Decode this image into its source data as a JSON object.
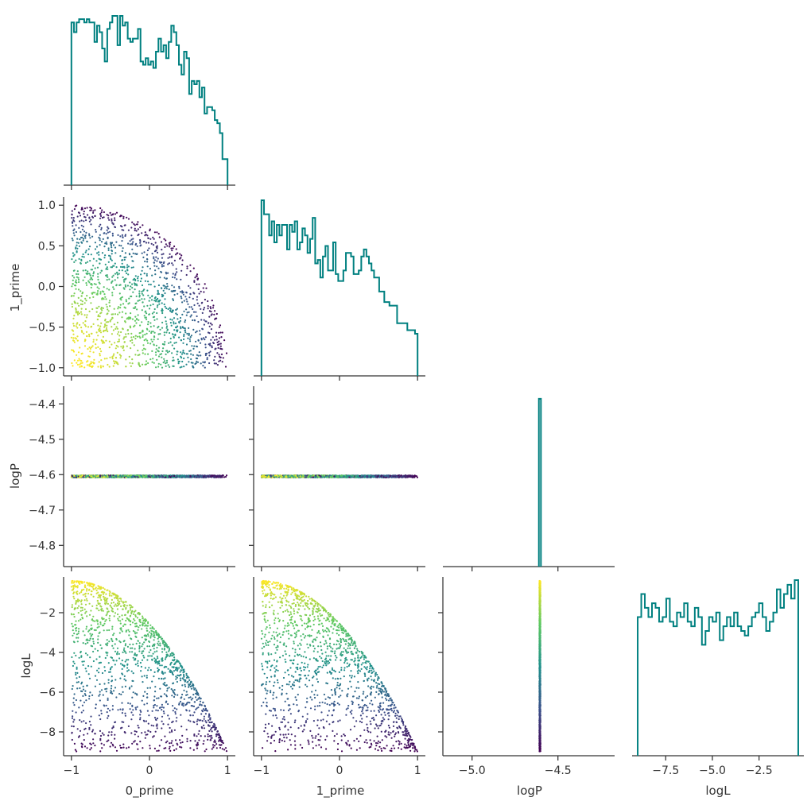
{
  "colors": {
    "hist": "#008080",
    "axis": "#333333",
    "viridis": [
      "#440154",
      "#3b528b",
      "#21918c",
      "#5ec962",
      "#fde725"
    ]
  },
  "chart_data": {
    "type": "pairplot",
    "layout": "lower-triangle corner plot",
    "variables": [
      "0_prime",
      "1_prime",
      "logP",
      "logL"
    ],
    "ranges": {
      "0_prime": [
        -1.1,
        1.1
      ],
      "1_prime": [
        -1.1,
        1.1
      ],
      "logP": [
        -4.86,
        -4.35
      ],
      "logL": [
        -9.2,
        -0.2
      ]
    },
    "hist_x_ranges": {
      "logP": [
        -5.17,
        -4.17
      ]
    },
    "ticks": {
      "0_prime": [
        -1,
        0,
        1
      ],
      "1_prime_y": [
        -1.0,
        -0.5,
        0.0,
        0.5,
        1.0
      ],
      "1_prime_x": [
        -1,
        0,
        1
      ],
      "logP_y": [
        -4.8,
        -4.7,
        -4.6,
        -4.5,
        -4.4
      ],
      "logP_x": [
        -5.0,
        -4.5
      ],
      "logL_y": [
        -8,
        -6,
        -4,
        -2
      ],
      "logL_x": [
        -7.5,
        -5.0,
        -2.5
      ]
    },
    "tick_labels": {
      "0_prime": [
        "−1",
        "0",
        "1"
      ],
      "1_prime_y": [
        "−1.0",
        "−0.5",
        "0.0",
        "0.5",
        "1.0"
      ],
      "1_prime_x": [
        "−1",
        "0",
        "1"
      ],
      "logP_y": [
        "−4.8",
        "−4.7",
        "−4.6",
        "−4.5",
        "−4.4"
      ],
      "logP_x": [
        "−5.0",
        "−4.5"
      ],
      "logL_y": [
        "−8",
        "−6",
        "−4",
        "−2"
      ],
      "logL_x": [
        "−7.5",
        "−5.0",
        "−2.5"
      ]
    },
    "axis_labels": {
      "x": [
        "0_prime",
        "1_prime",
        "logP",
        "logL"
      ],
      "y": [
        "1_prime",
        "logP",
        "logL"
      ]
    },
    "logP_constant": -4.605,
    "n_points": 1500,
    "color_by": "logL",
    "colormap": "viridis",
    "histograms": {
      "0_prime": {
        "bin_edges": [
          -1.0,
          1.0
        ],
        "counts": [
          50,
          47,
          50,
          51,
          51,
          50,
          51,
          50,
          50,
          44,
          49,
          47,
          42,
          38,
          48,
          50,
          52,
          52,
          43,
          52,
          49,
          50,
          45,
          44,
          45,
          45,
          48,
          38,
          37,
          39,
          37,
          38,
          36,
          41,
          45,
          41,
          43,
          39,
          44,
          49,
          47,
          43,
          37,
          34,
          41,
          39,
          28,
          32,
          31,
          32,
          27,
          30,
          22,
          24,
          24,
          23,
          20,
          19,
          16,
          8,
          8
        ]
      },
      "1_prime": {
        "bin_edges": [
          -1.0,
          1.0
        ],
        "counts": [
          50,
          46,
          46,
          40,
          44,
          38,
          43,
          40,
          43,
          43,
          36,
          43,
          41,
          44,
          36,
          38,
          42,
          40,
          35,
          39,
          45,
          32,
          33,
          28,
          34,
          37,
          30,
          30,
          38,
          29,
          27,
          27,
          30,
          35,
          35,
          34,
          29,
          29,
          30,
          34,
          36,
          34,
          32,
          30,
          28,
          28,
          24,
          24,
          21,
          21,
          20,
          20,
          20,
          15,
          15,
          15,
          15,
          13,
          13,
          13,
          12
        ]
      },
      "logP": {
        "bin_center": -4.605,
        "bin_width": 0.012,
        "peak_fraction": 0.93
      },
      "logL": {
        "bin_edges": [
          -9.0,
          -0.4
        ],
        "counts": [
          30,
          35,
          32,
          30,
          33,
          32,
          29,
          30,
          34,
          29,
          28,
          31,
          30,
          33,
          29,
          28,
          32,
          30,
          24,
          27,
          30,
          29,
          31,
          25,
          28,
          30,
          28,
          31,
          28,
          27,
          26,
          28,
          30,
          31,
          33,
          30,
          27,
          29,
          31,
          36,
          32,
          35,
          37,
          34,
          38
        ]
      }
    }
  }
}
